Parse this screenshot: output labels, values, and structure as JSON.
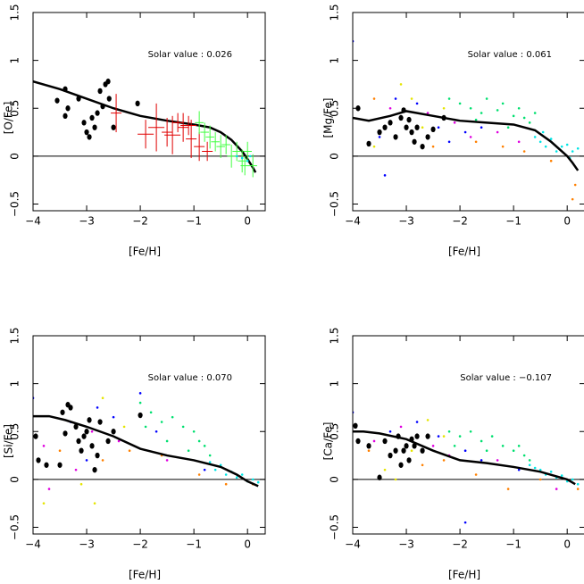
{
  "chart_data": [
    {
      "type": "scatter",
      "ylabel": "[O/Fe]",
      "xlabel": "[Fe/H]",
      "annotation": "Solar value :  0.026",
      "xlim": [
        -4,
        0.33
      ],
      "ylim": [
        -0.57,
        1.5
      ],
      "xticks": [
        {
          "value": -4,
          "label": "−4"
        },
        {
          "value": -3,
          "label": "−3"
        },
        {
          "value": -2,
          "label": "−2"
        },
        {
          "value": -1,
          "label": "−1"
        },
        0
      ],
      "yticks": [
        {
          "value": -0.5,
          "label": "−0.5"
        },
        0,
        0.5,
        1,
        1.5
      ],
      "hline": 0,
      "series": [
        {
          "style": "line",
          "color": "#000000",
          "x": [
            -4,
            -3.5,
            -3,
            -2.5,
            -2,
            -1.5,
            -1,
            -0.7,
            -0.5,
            -0.3,
            -0.1,
            0,
            0.1,
            0.15
          ],
          "values": [
            0.78,
            0.7,
            0.6,
            0.5,
            0.42,
            0.37,
            0.33,
            0.3,
            0.25,
            0.17,
            0.05,
            -0.03,
            -0.12,
            -0.17
          ]
        },
        {
          "style": "large",
          "color": "#000000",
          "x": [
            -3.55,
            -3.4,
            -3.35,
            -3.4,
            -3.15,
            -3.05,
            -3.0,
            -2.95,
            -2.9,
            -2.85,
            -2.8,
            -2.75,
            -2.7,
            -2.65,
            -2.6,
            -2.58,
            -2.5,
            -2.05
          ],
          "values": [
            0.58,
            0.7,
            0.5,
            0.42,
            0.6,
            0.35,
            0.25,
            0.2,
            0.4,
            0.3,
            0.45,
            0.68,
            0.52,
            0.75,
            0.78,
            0.6,
            0.3,
            0.55
          ]
        },
        {
          "style": "error",
          "color": "#e00000",
          "x": [
            -2.45,
            -1.9,
            -1.7,
            -1.5,
            -1.4,
            -1.3,
            -1.2,
            -1.1,
            -1.05,
            -0.9,
            -0.75
          ],
          "values": [
            0.45,
            0.23,
            0.3,
            0.25,
            0.22,
            0.35,
            0.3,
            0.32,
            0.18,
            0.1,
            0.05
          ],
          "xerr": [
            0.1,
            0.15,
            0.15,
            0.1,
            0.15,
            0.1,
            0.1,
            0.15,
            0.1,
            0.1,
            0.1
          ],
          "yerr": [
            0.2,
            0.15,
            0.25,
            0.15,
            0.2,
            0.1,
            0.15,
            0.1,
            0.2,
            0.15,
            0.1
          ]
        },
        {
          "style": "error",
          "color": "#40ff40",
          "x": [
            -0.9,
            -0.8,
            -0.7,
            -0.6,
            -0.5,
            -0.4,
            -0.3,
            -0.2,
            -0.1,
            0,
            0.1,
            -0.05
          ],
          "values": [
            0.35,
            0.25,
            0.2,
            0.15,
            0.1,
            0.12,
            0.0,
            0.05,
            -0.05,
            0.05,
            -0.1,
            -0.1
          ],
          "xerr": [
            0.08,
            0.08,
            0.08,
            0.08,
            0.08,
            0.08,
            0.08,
            0.08,
            0.08,
            0.08,
            0.08,
            0.08
          ],
          "yerr": [
            0.12,
            0.1,
            0.12,
            0.1,
            0.12,
            0.1,
            0.12,
            0.1,
            0.12,
            0.1,
            0.12,
            0.1
          ]
        },
        {
          "style": "small",
          "color": "#00e5e5",
          "x": [
            -0.2,
            -0.1,
            0,
            0.05
          ],
          "values": [
            0.0,
            -0.02,
            -0.05,
            0.0
          ]
        }
      ]
    },
    {
      "type": "scatter",
      "ylabel": "[Mg/Fe]",
      "xlabel": "[Fe/H]",
      "annotation": "Solar value :  0.061",
      "xlim": [
        -4,
        0.33
      ],
      "ylim": [
        -0.57,
        1.5
      ],
      "xticks": [
        {
          "value": -4,
          "label": "−4"
        },
        {
          "value": -3,
          "label": "−3"
        },
        {
          "value": -2,
          "label": "−2"
        },
        {
          "value": -1,
          "label": "−1"
        },
        0
      ],
      "yticks": [
        {
          "value": -0.5,
          "label": "−0.5"
        },
        0,
        0.5,
        1,
        1.5
      ],
      "hline": 0,
      "series": [
        {
          "style": "small",
          "color": "#00e070",
          "x": [
            -2.2,
            -2,
            -1.8,
            -1.6,
            -1.5,
            -1.3,
            -1.2,
            -1,
            -0.9,
            -0.8,
            -0.7,
            -1.7,
            -1.1,
            -0.6
          ],
          "values": [
            0.6,
            0.55,
            0.5,
            0.45,
            0.6,
            0.48,
            0.55,
            0.42,
            0.5,
            0.4,
            0.35,
            0.38,
            0.3,
            0.45
          ]
        },
        {
          "style": "small",
          "color": "#00e5e5",
          "x": [
            -0.6,
            -0.5,
            -0.4,
            -0.3,
            -0.2,
            -0.1,
            0,
            0.1,
            0.2,
            -0.45,
            0.05
          ],
          "values": [
            0.2,
            0.15,
            0.1,
            0.18,
            0.05,
            0.1,
            0.12,
            0.05,
            0.08,
            0.25,
            -0.02
          ]
        },
        {
          "style": "small",
          "color": "#0000ff",
          "x": [
            -4,
            -3.5,
            -3.2,
            -2.8,
            -2.4,
            -1.9,
            -1.6,
            -3.4,
            -2.2
          ],
          "values": [
            1.2,
            0.2,
            0.6,
            0.55,
            0.3,
            0.25,
            0.3,
            -0.2,
            0.15
          ]
        },
        {
          "style": "small",
          "color": "#e000e0",
          "x": [
            -3.3,
            -2.6,
            -2.1,
            -1.8,
            -1.3,
            -0.9
          ],
          "values": [
            0.5,
            0.45,
            0.35,
            0.2,
            0.25,
            0.15
          ]
        },
        {
          "style": "small",
          "color": "#ff8000",
          "x": [
            -3.6,
            -2.5,
            -1.7,
            -1.2,
            -0.8,
            -0.3,
            0.15,
            0.1
          ],
          "values": [
            0.6,
            0.1,
            0.15,
            0.1,
            0.05,
            -0.05,
            -0.3,
            -0.45
          ]
        },
        {
          "style": "small",
          "color": "#e5e500",
          "x": [
            -3.1,
            -2.9,
            -2.7,
            -2.3,
            -3.6
          ],
          "values": [
            0.75,
            0.6,
            0.3,
            0.5,
            0.1
          ]
        },
        {
          "style": "large",
          "color": "#000000",
          "x": [
            -3.9,
            -3.7,
            -3.5,
            -3.4,
            -3.3,
            -3.2,
            -3.1,
            -3.05,
            -3,
            -2.95,
            -2.9,
            -2.85,
            -2.8,
            -2.7,
            -2.6,
            -2.5,
            -2.3
          ],
          "values": [
            0.5,
            0.13,
            0.25,
            0.3,
            0.35,
            0.2,
            0.4,
            0.48,
            0.3,
            0.38,
            0.25,
            0.15,
            0.3,
            0.1,
            0.2,
            0.28,
            0.4
          ]
        },
        {
          "style": "line",
          "color": "#000000",
          "x": [
            -4,
            -3.7,
            -3.3,
            -3,
            -2.5,
            -2,
            -1.5,
            -1,
            -0.6,
            -0.3,
            0,
            0.1,
            0.2
          ],
          "values": [
            0.4,
            0.37,
            0.42,
            0.47,
            0.42,
            0.37,
            0.35,
            0.33,
            0.27,
            0.15,
            0.0,
            -0.07,
            -0.15
          ]
        }
      ]
    },
    {
      "type": "scatter",
      "ylabel": "[Si/Fe]",
      "xlabel": "[Fe/H]",
      "annotation": "Solar value :  0.070",
      "xlim": [
        -4,
        0.33
      ],
      "ylim": [
        -0.57,
        1.5
      ],
      "xticks": [
        {
          "value": -4,
          "label": "−4"
        },
        {
          "value": -3,
          "label": "−3"
        },
        {
          "value": -2,
          "label": "−2"
        },
        {
          "value": -1,
          "label": "−1"
        },
        0
      ],
      "yticks": [
        {
          "value": -0.5,
          "label": "−0.5"
        },
        0,
        0.5,
        1,
        1.5
      ],
      "hline": 0,
      "series": [
        {
          "style": "small",
          "color": "#00e070",
          "x": [
            -2,
            -1.8,
            -1.6,
            -1.4,
            -1.2,
            -1.0,
            -0.9,
            -0.8,
            -1.5,
            -1.1,
            -0.7,
            -1.9
          ],
          "values": [
            0.8,
            0.7,
            0.6,
            0.65,
            0.55,
            0.5,
            0.4,
            0.35,
            0.4,
            0.3,
            0.25,
            0.55
          ]
        },
        {
          "style": "small",
          "color": "#00e5e5",
          "x": [
            -0.6,
            -0.5,
            -0.4,
            -0.3,
            -0.2,
            -0.1,
            0,
            0.1,
            0.2,
            -0.7
          ],
          "values": [
            0.1,
            0.15,
            0.05,
            0.08,
            0.02,
            0.05,
            -0.02,
            0.0,
            -0.03,
            0.18
          ]
        },
        {
          "style": "small",
          "color": "#0000ff",
          "x": [
            -4,
            -3.3,
            -2.8,
            -2.5,
            -2,
            -1.7,
            -3.0,
            -0.8
          ],
          "values": [
            0.85,
            0.6,
            0.75,
            0.65,
            0.9,
            0.5,
            0.2,
            0.1
          ]
        },
        {
          "style": "small",
          "color": "#e000e0",
          "x": [
            -3.8,
            -3.2,
            -2.9,
            -2.4,
            -1.5,
            -3.7
          ],
          "values": [
            0.35,
            0.1,
            0.5,
            0.4,
            0.2,
            -0.1
          ]
        },
        {
          "style": "small",
          "color": "#ff8000",
          "x": [
            -3.5,
            -2.7,
            -2.2,
            -1.6,
            -0.9,
            -0.4,
            0.1
          ],
          "values": [
            0.3,
            0.2,
            0.3,
            0.25,
            0.05,
            -0.05,
            -0.05
          ]
        },
        {
          "style": "small",
          "color": "#e5e500",
          "x": [
            -3.8,
            -3.1,
            -2.7,
            -2.3,
            -2.85
          ],
          "values": [
            -0.25,
            -0.05,
            0.85,
            0.55,
            -0.25
          ]
        },
        {
          "style": "large",
          "color": "#000000",
          "x": [
            -3.95,
            -3.9,
            -3.75,
            -3.45,
            -3.4,
            -3.35,
            -3.3,
            -3.2,
            -3.15,
            -3.1,
            -3.05,
            -3.0,
            -2.95,
            -2.9,
            -2.85,
            -2.8,
            -2.75,
            -2.6,
            -2.5,
            -2.0,
            -3.5
          ],
          "values": [
            0.45,
            0.2,
            0.15,
            0.7,
            0.48,
            0.78,
            0.75,
            0.55,
            0.4,
            0.3,
            0.45,
            0.5,
            0.62,
            0.35,
            0.1,
            0.25,
            0.6,
            0.4,
            0.5,
            0.67,
            0.15
          ]
        },
        {
          "style": "line",
          "color": "#000000",
          "x": [
            -4,
            -3.7,
            -3.4,
            -3,
            -2.5,
            -2,
            -1.5,
            -1,
            -0.5,
            -0.2,
            0,
            0.2
          ],
          "values": [
            0.66,
            0.66,
            0.62,
            0.55,
            0.45,
            0.32,
            0.25,
            0.2,
            0.13,
            0.05,
            -0.02,
            -0.07
          ]
        }
      ]
    },
    {
      "type": "scatter",
      "ylabel": "[Ca/Fe]",
      "xlabel": "[Fe/H]",
      "annotation": "Solar value :  −0.107",
      "xlim": [
        -4,
        0.33
      ],
      "ylim": [
        -0.57,
        1.5
      ],
      "xticks": [
        {
          "value": -4,
          "label": "−4"
        },
        {
          "value": -3,
          "label": "−3"
        },
        {
          "value": -2,
          "label": "−2"
        },
        {
          "value": -1,
          "label": "−1"
        },
        0
      ],
      "yticks": [
        {
          "value": -0.5,
          "label": "−0.5"
        },
        0,
        0.5,
        1,
        1.5
      ],
      "hline": 0,
      "series": [
        {
          "style": "small",
          "color": "#00e070",
          "x": [
            -2.2,
            -2,
            -1.8,
            -1.6,
            -1.4,
            -1.2,
            -1,
            -0.9,
            -0.8,
            -1.5,
            -0.7,
            -2.1
          ],
          "values": [
            0.5,
            0.45,
            0.5,
            0.4,
            0.45,
            0.35,
            0.3,
            0.35,
            0.25,
            0.3,
            0.2,
            0.35
          ]
        },
        {
          "style": "small",
          "color": "#00e5e5",
          "x": [
            -0.6,
            -0.5,
            -0.4,
            -0.3,
            -0.2,
            -0.1,
            0,
            0.1,
            0.2,
            -0.7
          ],
          "values": [
            0.12,
            0.1,
            0.05,
            0.08,
            0.02,
            0.04,
            -0.02,
            0.0,
            -0.05,
            0.15
          ]
        },
        {
          "style": "small",
          "color": "#0000ff",
          "x": [
            -4,
            -3.3,
            -2.8,
            -2.4,
            -1.9,
            -1.6,
            -1.9,
            -0.9
          ],
          "values": [
            0.7,
            0.5,
            0.6,
            0.45,
            0.3,
            0.2,
            -0.45,
            0.1
          ]
        },
        {
          "style": "small",
          "color": "#e000e0",
          "x": [
            -3.6,
            -3.1,
            -2.5,
            -2.2,
            -1.3,
            -0.2
          ],
          "values": [
            0.4,
            0.55,
            0.35,
            0.25,
            0.2,
            -0.1
          ]
        },
        {
          "style": "small",
          "color": "#ff8000",
          "x": [
            -3.7,
            -2.7,
            -2.3,
            -1.7,
            -1.1,
            -0.5,
            0.2
          ],
          "values": [
            0.3,
            0.15,
            0.2,
            0.05,
            -0.1,
            0.0,
            -0.1
          ]
        },
        {
          "style": "small",
          "color": "#e5e500",
          "x": [
            -3.4,
            -2.9,
            -2.6,
            -2.3,
            -3.2
          ],
          "values": [
            0.1,
            0.3,
            0.62,
            0.45,
            0.0
          ]
        },
        {
          "style": "large",
          "color": "#000000",
          "x": [
            -3.95,
            -3.9,
            -3.7,
            -3.5,
            -3.4,
            -3.3,
            -3.2,
            -3.15,
            -3.1,
            -3.05,
            -3,
            -2.95,
            -2.9,
            -2.85,
            -2.8,
            -2.7,
            -2.6
          ],
          "values": [
            0.56,
            0.4,
            0.35,
            0.02,
            0.4,
            0.25,
            0.3,
            0.45,
            0.15,
            0.3,
            0.35,
            0.2,
            0.42,
            0.35,
            0.45,
            0.3,
            0.45
          ]
        },
        {
          "style": "line",
          "color": "#000000",
          "x": [
            -4,
            -3.8,
            -3.5,
            -3,
            -2.5,
            -2,
            -1.5,
            -1,
            -0.5,
            0,
            0.15
          ],
          "values": [
            0.5,
            0.5,
            0.48,
            0.42,
            0.3,
            0.2,
            0.17,
            0.13,
            0.08,
            0.0,
            -0.05
          ]
        }
      ]
    }
  ]
}
